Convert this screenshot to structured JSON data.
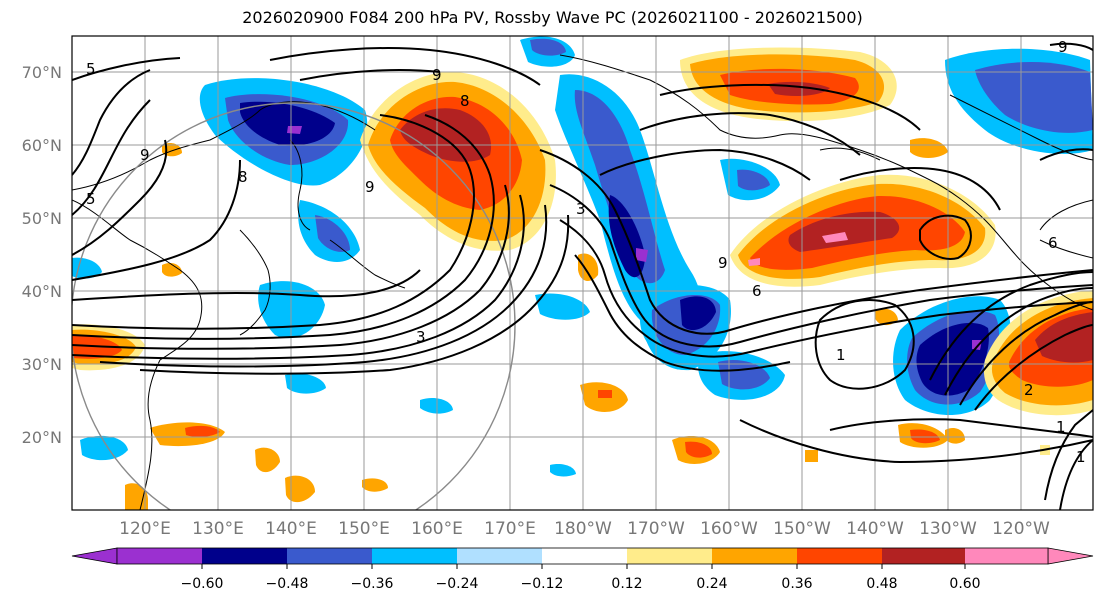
{
  "title": "2026020900 F084 200 hPa PV, Rossby Wave PC (2026021100 - 2026021500)",
  "map": {
    "lat_labels": [
      "70°N",
      "60°N",
      "50°N",
      "40°N",
      "30°N",
      "20°N"
    ],
    "lon_labels": [
      "120°E",
      "130°E",
      "140°E",
      "150°E",
      "160°E",
      "170°E",
      "180°W",
      "170°W",
      "160°W",
      "150°W",
      "140°W",
      "130°W",
      "120°W"
    ],
    "contour_labels": [
      "5",
      "5",
      "9",
      "8",
      "8",
      "9",
      "3",
      "3",
      "9",
      "6",
      "1",
      "2",
      "1",
      "1",
      "9",
      "9",
      "6"
    ]
  },
  "colorbar": {
    "ticks": [
      "−0.60",
      "−0.48",
      "−0.36",
      "−0.24",
      "−0.12",
      "0.12",
      "0.24",
      "0.36",
      "0.48",
      "0.60"
    ],
    "colors": [
      "#9b30d0",
      "#00008b",
      "#3a5acd",
      "#00bfff",
      "#b0e0ff",
      "#ffffff",
      "#ffec8b",
      "#ffa500",
      "#ff4500",
      "#b22222",
      "#ff88bb"
    ]
  }
}
